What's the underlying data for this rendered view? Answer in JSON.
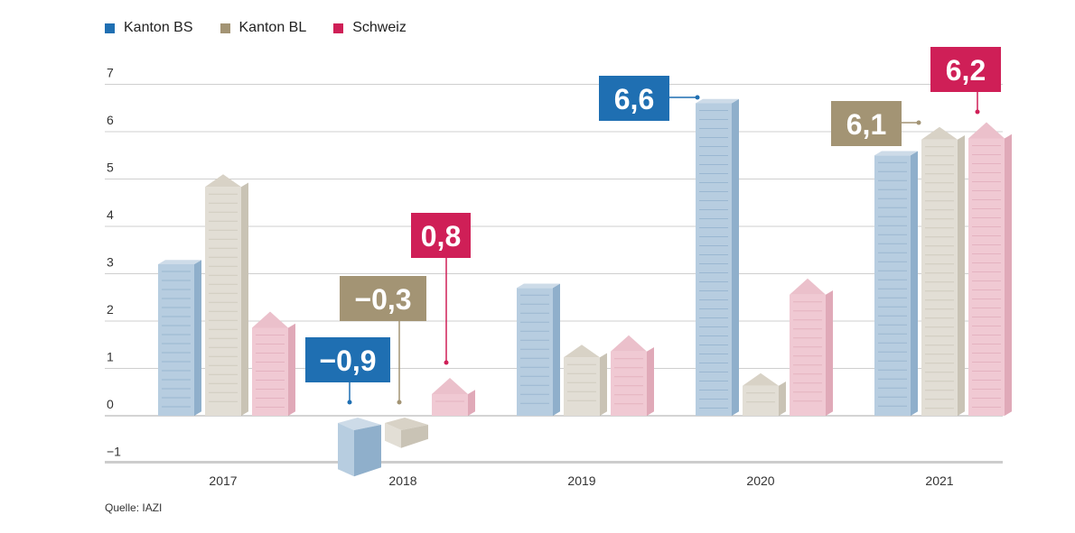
{
  "legend": [
    {
      "label": "Kanton BS",
      "color": "#1f6fb2"
    },
    {
      "label": "Kanton BL",
      "color": "#a39474"
    },
    {
      "label": "Schweiz",
      "color": "#cf1f57"
    }
  ],
  "source": "Quelle: IAZI",
  "chart_data": {
    "type": "bar",
    "categories": [
      "2017",
      "2018",
      "2019",
      "2020",
      "2021"
    ],
    "series": [
      {
        "name": "Kanton BS",
        "values": [
          3.2,
          -0.9,
          2.7,
          6.6,
          5.5
        ],
        "body": "#b7cde0",
        "side": "#8fafcb",
        "roof": "#cddbe8",
        "labelColor": "#1f6fb2"
      },
      {
        "name": "Kanton BL",
        "values": [
          5.1,
          -0.3,
          1.5,
          0.9,
          6.1
        ],
        "body": "#e2ded5",
        "side": "#c9c3b5",
        "roof": "#d8d2c6",
        "labelColor": "#a39474"
      },
      {
        "name": "Schweiz",
        "values": [
          2.2,
          0.8,
          1.7,
          2.9,
          6.2
        ],
        "body": "#f0c9d3",
        "side": "#e0a9b8",
        "roof": "#ebc0cb",
        "labelColor": "#cf1f57"
      }
    ],
    "ylim": [
      -1,
      7
    ],
    "yticks": [
      -1,
      0,
      1,
      2,
      3,
      4,
      5,
      6,
      7
    ],
    "ytick_labels": [
      "−1",
      "0",
      "1",
      "2",
      "3",
      "4",
      "5",
      "6",
      "7"
    ],
    "grid": true,
    "legend_position": "top-left",
    "data_labels": [
      {
        "series": 0,
        "category": 1,
        "text": "−0,9"
      },
      {
        "series": 1,
        "category": 1,
        "text": "−0,3"
      },
      {
        "series": 2,
        "category": 1,
        "text": "0,8"
      },
      {
        "series": 0,
        "category": 3,
        "text": "6,6"
      },
      {
        "series": 1,
        "category": 4,
        "text": "6,1"
      },
      {
        "series": 2,
        "category": 4,
        "text": "6,2"
      }
    ]
  }
}
